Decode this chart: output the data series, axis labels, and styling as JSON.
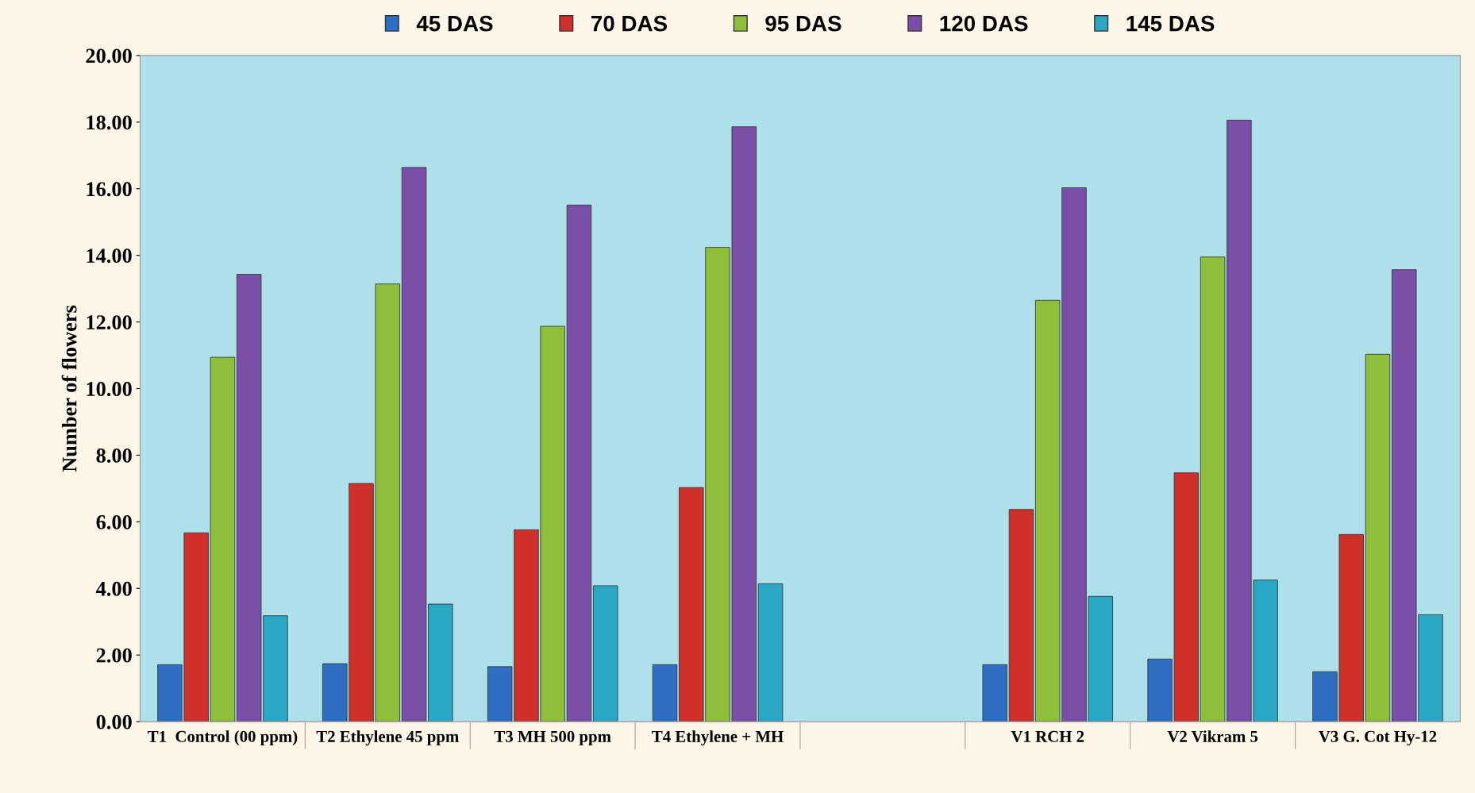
{
  "chart_data": {
    "type": "bar",
    "ylabel": "Number of flowers",
    "categories": [
      "T1  Control (00 ppm)",
      "T2 Ethylene 45 ppm",
      "T3 MH 500 ppm",
      "T4 Ethylene + MH",
      null,
      "V1 RCH 2",
      "V2 Vikram 5",
      "V3 G. Cot Hy-12"
    ],
    "series": [
      {
        "name": "45 DAS",
        "color": "#2e6fc4",
        "values": [
          1.71,
          1.74,
          1.65,
          1.71,
          null,
          1.71,
          1.88,
          1.5
        ]
      },
      {
        "name": "70 DAS",
        "color": "#d0302a",
        "values": [
          5.67,
          7.15,
          5.76,
          7.03,
          null,
          6.37,
          7.47,
          5.62
        ]
      },
      {
        "name": "95 DAS",
        "color": "#8fbf3a",
        "values": [
          10.94,
          13.14,
          11.87,
          14.24,
          null,
          12.65,
          13.95,
          11.03
        ]
      },
      {
        "name": "120 DAS",
        "color": "#7a4fa8",
        "values": [
          13.43,
          16.64,
          15.51,
          17.86,
          null,
          16.03,
          18.06,
          13.57
        ]
      },
      {
        "name": "145 DAS",
        "color": "#2aa7c4",
        "values": [
          3.18,
          3.53,
          4.08,
          4.14,
          null,
          3.76,
          4.25,
          3.21
        ]
      }
    ],
    "ylim": [
      0,
      20
    ],
    "yticks": [
      {
        "value": 0,
        "label": "0.00"
      },
      {
        "value": 2,
        "label": "2.00"
      },
      {
        "value": 4,
        "label": "4.00"
      },
      {
        "value": 6,
        "label": "6.00"
      },
      {
        "value": 8,
        "label": "8.00"
      },
      {
        "value": 10,
        "label": "10.00"
      },
      {
        "value": 12,
        "label": "12.00"
      },
      {
        "value": 14,
        "label": "14.00"
      },
      {
        "value": 16,
        "label": "16.00"
      },
      {
        "value": 18,
        "label": "18.00"
      },
      {
        "value": 20,
        "label": "20.00"
      }
    ],
    "legend": "top",
    "grid": false
  }
}
